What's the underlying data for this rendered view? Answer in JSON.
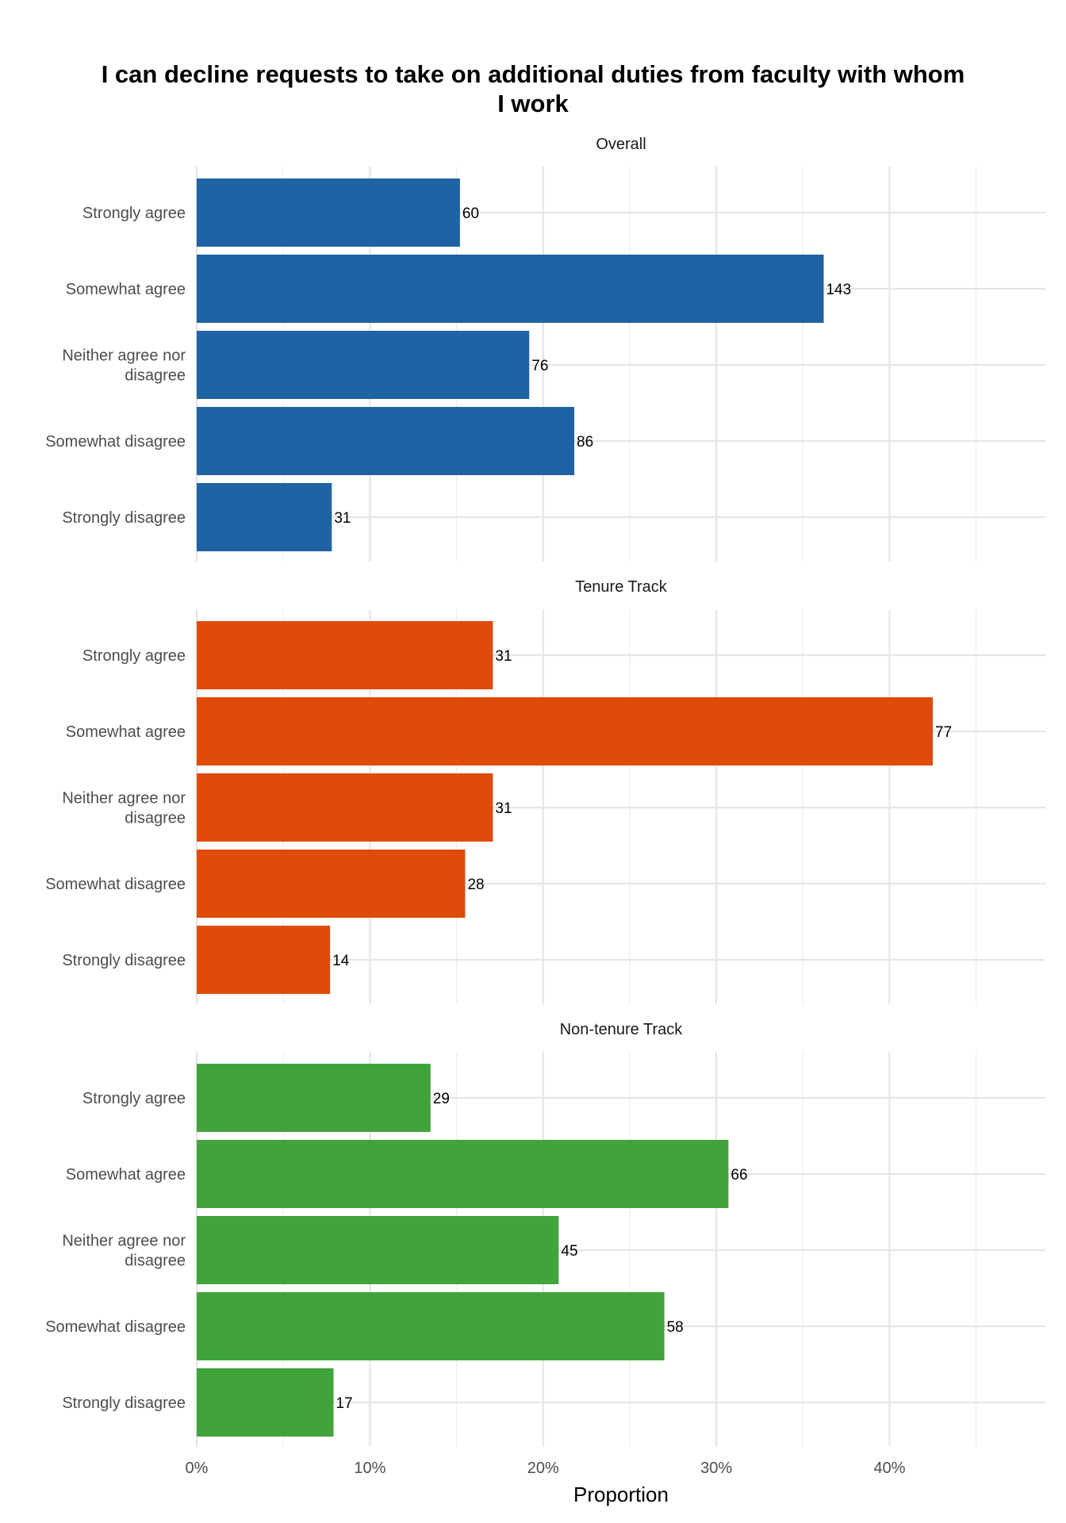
{
  "chart_data": {
    "type": "bar",
    "orientation": "horizontal",
    "title": "I can decline requests to take on additional duties from faculty with whom I work",
    "xlabel": "Proportion",
    "ylabel": "",
    "xlim": [
      0,
      0.49
    ],
    "x_ticks": [
      {
        "value": 0,
        "label": "0%"
      },
      {
        "value": 0.1,
        "label": "10%"
      },
      {
        "value": 0.2,
        "label": "20%"
      },
      {
        "value": 0.3,
        "label": "30%"
      },
      {
        "value": 0.4,
        "label": "40%"
      }
    ],
    "grid": true,
    "legend": "none",
    "categories": [
      "Strongly agree",
      "Somewhat agree",
      "Neither agree nor disagree",
      "Somewhat disagree",
      "Strongly disagree"
    ],
    "category_lines": [
      [
        "Strongly agree"
      ],
      [
        "Somewhat agree"
      ],
      [
        "Neither agree nor",
        "disagree"
      ],
      [
        "Somewhat disagree"
      ],
      [
        "Strongly disagree"
      ]
    ],
    "facets": [
      {
        "label": "Overall",
        "color": "#1f63a5",
        "counts": [
          60,
          143,
          76,
          86,
          31
        ],
        "proportions": [
          0.152,
          0.362,
          0.192,
          0.218,
          0.078
        ]
      },
      {
        "label": "Tenure Track",
        "color": "#df4b09",
        "counts": [
          31,
          77,
          31,
          28,
          14
        ],
        "proportions": [
          0.171,
          0.425,
          0.171,
          0.155,
          0.077
        ]
      },
      {
        "label": "Non-tenure Track",
        "color": "#41a33b",
        "counts": [
          29,
          66,
          45,
          58,
          17
        ],
        "proportions": [
          0.135,
          0.307,
          0.209,
          0.27,
          0.079
        ]
      }
    ]
  }
}
